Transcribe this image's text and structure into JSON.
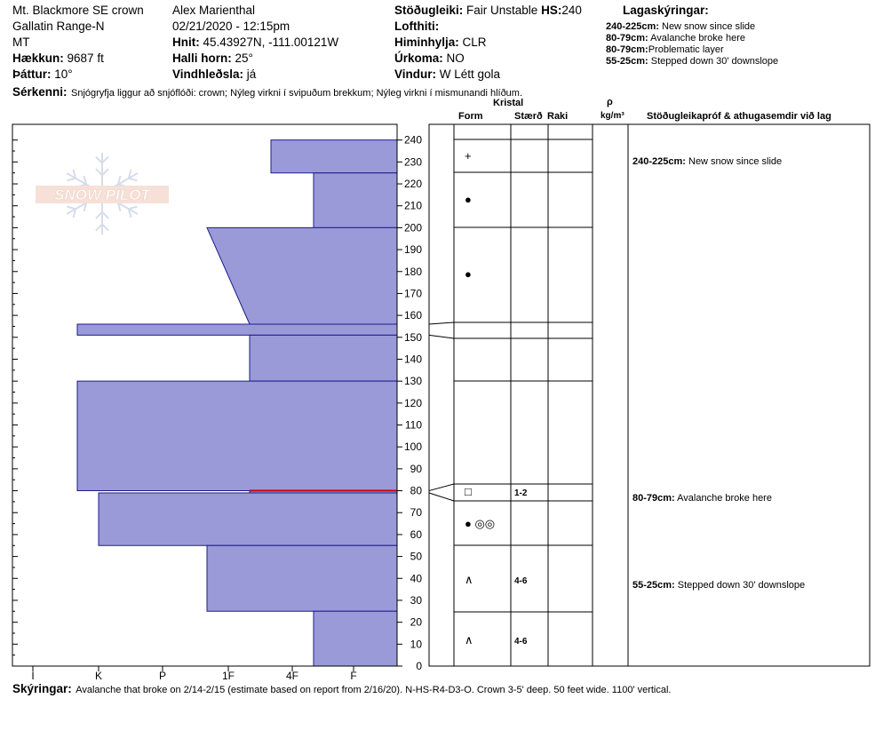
{
  "header": {
    "location": "Mt. Blackmore SE crown",
    "range": "Gallatin Range-N",
    "state": "MT",
    "elevation_label": "Hækkun:",
    "elevation": "9687 ft",
    "aspect_label": "Þáttur:",
    "aspect": "10°",
    "observer": "Alex Marienthal",
    "datetime": "02/21/2020 - 12:15pm",
    "coords_label": "Hnit:",
    "coords": "45.43927N, -111.00121W",
    "slope_label": "Halli horn:",
    "slope": "25°",
    "wind_loading_label": "Vindhleðsla:",
    "wind_loading": "já",
    "stability_label": "Stöðugleiki:",
    "stability": "Fair Unstable",
    "hs_label": "HS:",
    "hs": "240",
    "air_temp_label": "Lofthiti:",
    "sky_label": "Himinhylja:",
    "sky": "CLR",
    "precip_label": "Úrkoma:",
    "precip": "NO",
    "wind_label": "Vindur:",
    "wind": "W Létt gola",
    "layer_notes_label": "Lagaskýringar:",
    "layer_notes": [
      {
        "range": "240-225cm:",
        "text": "New snow since slide"
      },
      {
        "range": "80-79cm:",
        "text": "Avalanche broke here"
      },
      {
        "range": "80-79cm:",
        "text": "Problematic layer"
      },
      {
        "range": "55-25cm:",
        "text": "Stepped down 30' downslope"
      }
    ],
    "features_label": "Sérkenni:",
    "features": "Snjógryfja liggur að snjóflóði: crown; Nýleg virkni í svipuðum brekkum; Nýleg virkni í mismunandi hlíðum."
  },
  "watermark": "SNOW PILOT",
  "columns": {
    "crystal": "Kristal",
    "form": "Form",
    "size": "Stærð",
    "moisture": "Raki",
    "rho": "ρ",
    "density_unit": "kg/m³",
    "stability_tests": "Stöðugleikapróf & athugasemdir við lag"
  },
  "comments_label": "Skýringar:",
  "comments": "Avalanche that broke on 2/14-2/15 (estimate based on report from 2/16/20). N-HS-R4-D3-O. Crown 3-5' deep. 50 feet wide. 1100' vertical.",
  "chart_data": {
    "type": "bar",
    "title": "",
    "ylabel": "",
    "ylim": [
      0,
      240
    ],
    "y_ticks": [
      0,
      10,
      20,
      30,
      40,
      50,
      60,
      70,
      80,
      90,
      100,
      110,
      120,
      130,
      140,
      150,
      160,
      170,
      180,
      190,
      200,
      210,
      220,
      230,
      240
    ],
    "hardness_scale": [
      "I",
      "K",
      "P",
      "1F",
      "4F",
      "F"
    ],
    "hardness_profile": [
      {
        "bottom": 225,
        "top": 240,
        "hardness_top": "4F+",
        "hardness_bottom": "4F+"
      },
      {
        "bottom": 200,
        "top": 225,
        "hardness_top": "4F-",
        "hardness_bottom": "4F-"
      },
      {
        "bottom": 156,
        "top": 200,
        "hardness_top": "1F+",
        "hardness_bottom": "1F-"
      },
      {
        "bottom": 151,
        "top": 156,
        "hardness_top": "K+",
        "hardness_bottom": "K+"
      },
      {
        "bottom": 130,
        "top": 151,
        "hardness_top": "1F-",
        "hardness_bottom": "1F-"
      },
      {
        "bottom": 80,
        "top": 130,
        "hardness_top": "K+",
        "hardness_bottom": "K+"
      },
      {
        "bottom": 79,
        "top": 80,
        "hardness_top": "1F-",
        "hardness_bottom": "1F-"
      },
      {
        "bottom": 55,
        "top": 79,
        "hardness_top": "K",
        "hardness_bottom": "K"
      },
      {
        "bottom": 25,
        "top": 55,
        "hardness_top": "1F+",
        "hardness_bottom": "1F+"
      },
      {
        "bottom": 0,
        "top": 25,
        "hardness_top": "4F-",
        "hardness_bottom": "4F-"
      }
    ],
    "critical_layer": 80,
    "layers": [
      {
        "top": 240,
        "bottom": 225,
        "form": "+",
        "size": ""
      },
      {
        "top": 225,
        "bottom": 200,
        "form": "●",
        "size": ""
      },
      {
        "top": 200,
        "bottom": 156,
        "form": "●",
        "size": ""
      },
      {
        "top": 156,
        "bottom": 151,
        "form": "",
        "size": ""
      },
      {
        "top": 151,
        "bottom": 130,
        "form": "",
        "size": ""
      },
      {
        "top": 130,
        "bottom": 80,
        "form": "",
        "size": ""
      },
      {
        "top": 80,
        "bottom": 79,
        "form": "□",
        "size": "1-2"
      },
      {
        "top": 79,
        "bottom": 55,
        "form": "● ◎◎",
        "size": ""
      },
      {
        "top": 55,
        "bottom": 25,
        "form": "∧",
        "size": "4-6"
      },
      {
        "top": 25,
        "bottom": 0,
        "form": "∧",
        "size": "4-6"
      }
    ],
    "layer_comments": [
      {
        "y": 230,
        "range": "240-225cm:",
        "text": "New snow since slide"
      },
      {
        "y": 79.5,
        "range": "80-79cm:",
        "text": "Avalanche broke here"
      },
      {
        "y": 40,
        "range": "55-25cm:",
        "text": "Stepped down 30' downslope"
      }
    ],
    "colors": {
      "fill": "#9a9ad8",
      "stroke": "#1c1c8c",
      "critical": "#cc0000"
    }
  }
}
